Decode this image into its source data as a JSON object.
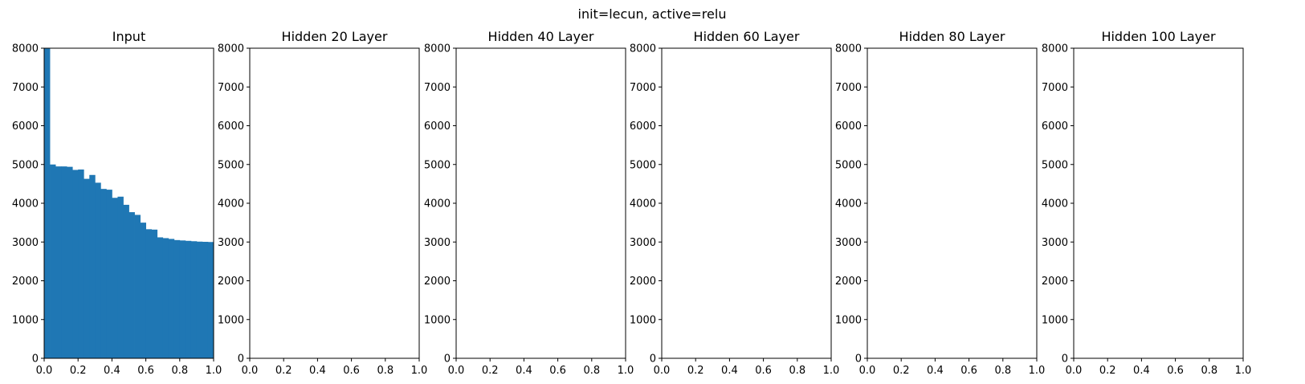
{
  "figure": {
    "suptitle": "init=lecun, active=relu"
  },
  "colors": {
    "bar": "#1f77b4",
    "axis": "#000000",
    "background": "#ffffff"
  },
  "chart_data": [
    {
      "type": "bar",
      "title": "Input",
      "xlabel": "",
      "ylabel": "",
      "xlim": [
        0,
        1
      ],
      "ylim": [
        0,
        8000
      ],
      "xticks": [
        "0.0",
        "0.2",
        "0.4",
        "0.6",
        "0.8",
        "1.0"
      ],
      "yticks": [
        "0",
        "1000",
        "2000",
        "3000",
        "4000",
        "5000",
        "6000",
        "7000",
        "8000"
      ],
      "grid": false,
      "bin_edges": [
        0.0,
        0.0333,
        0.0667,
        0.1,
        0.1333,
        0.1667,
        0.2,
        0.2333,
        0.2667,
        0.3,
        0.3333,
        0.3667,
        0.4,
        0.4333,
        0.4667,
        0.5,
        0.5333,
        0.5667,
        0.6,
        0.6333,
        0.6667,
        0.7,
        0.7333,
        0.7667,
        0.8,
        0.8333,
        0.8667,
        0.9,
        0.9333,
        0.9667,
        1.0
      ],
      "values": [
        8000,
        5000,
        4950,
        4950,
        4940,
        4860,
        4870,
        4630,
        4730,
        4530,
        4370,
        4350,
        4140,
        4170,
        3960,
        3770,
        3700,
        3500,
        3330,
        3320,
        3120,
        3100,
        3080,
        3050,
        3040,
        3030,
        3020,
        3010,
        3005,
        3000
      ]
    },
    {
      "type": "bar",
      "title": "Hidden 20 Layer",
      "xlabel": "",
      "ylabel": "",
      "xlim": [
        0,
        1
      ],
      "ylim": [
        0,
        8000
      ],
      "xticks": [
        "0.0",
        "0.2",
        "0.4",
        "0.6",
        "0.8",
        "1.0"
      ],
      "yticks": [
        "0",
        "1000",
        "2000",
        "3000",
        "4000",
        "5000",
        "6000",
        "7000",
        "8000"
      ],
      "grid": false,
      "bin_edges": [],
      "values": []
    },
    {
      "type": "bar",
      "title": "Hidden 40 Layer",
      "xlabel": "",
      "ylabel": "",
      "xlim": [
        0,
        1
      ],
      "ylim": [
        0,
        8000
      ],
      "xticks": [
        "0.0",
        "0.2",
        "0.4",
        "0.6",
        "0.8",
        "1.0"
      ],
      "yticks": [
        "0",
        "1000",
        "2000",
        "3000",
        "4000",
        "5000",
        "6000",
        "7000",
        "8000"
      ],
      "grid": false,
      "bin_edges": [],
      "values": []
    },
    {
      "type": "bar",
      "title": "Hidden 60 Layer",
      "xlabel": "",
      "ylabel": "",
      "xlim": [
        0,
        1
      ],
      "ylim": [
        0,
        8000
      ],
      "xticks": [
        "0.0",
        "0.2",
        "0.4",
        "0.6",
        "0.8",
        "1.0"
      ],
      "yticks": [
        "0",
        "1000",
        "2000",
        "3000",
        "4000",
        "5000",
        "6000",
        "7000",
        "8000"
      ],
      "grid": false,
      "bin_edges": [],
      "values": []
    },
    {
      "type": "bar",
      "title": "Hidden 80 Layer",
      "xlabel": "",
      "ylabel": "",
      "xlim": [
        0,
        1
      ],
      "ylim": [
        0,
        8000
      ],
      "xticks": [
        "0.0",
        "0.2",
        "0.4",
        "0.6",
        "0.8",
        "1.0"
      ],
      "yticks": [
        "0",
        "1000",
        "2000",
        "3000",
        "4000",
        "5000",
        "6000",
        "7000",
        "8000"
      ],
      "grid": false,
      "bin_edges": [],
      "values": []
    },
    {
      "type": "bar",
      "title": "Hidden 100 Layer",
      "xlabel": "",
      "ylabel": "",
      "xlim": [
        0,
        1
      ],
      "ylim": [
        0,
        8000
      ],
      "xticks": [
        "0.0",
        "0.2",
        "0.4",
        "0.6",
        "0.8",
        "1.0"
      ],
      "yticks": [
        "0",
        "1000",
        "2000",
        "3000",
        "4000",
        "5000",
        "6000",
        "7000",
        "8000"
      ],
      "grid": false,
      "bin_edges": [],
      "values": []
    }
  ]
}
